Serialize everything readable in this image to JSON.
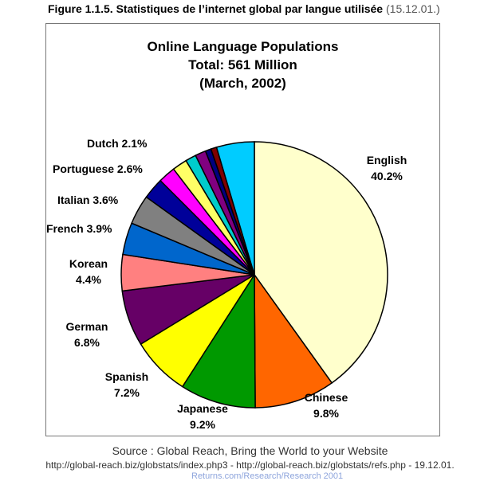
{
  "figure": {
    "caption_main": "Figure 1.1.5. Statistiques de l’internet global par langue utilisée",
    "caption_date": "(15.12.01.)"
  },
  "chart_data": {
    "type": "pie",
    "title": "Online Language Populations",
    "subtitle_1": "Total: 561 Million",
    "subtitle_2": "(March, 2002)",
    "slices": [
      {
        "label": "English",
        "pct_text": "40.2%",
        "value": 40.2,
        "color": "#ffffcc"
      },
      {
        "label": "Chinese",
        "pct_text": "9.8%",
        "value": 9.8,
        "color": "#ff6600"
      },
      {
        "label": "Japanese",
        "pct_text": "9.2%",
        "value": 9.2,
        "color": "#009900"
      },
      {
        "label": "Spanish",
        "pct_text": "7.2%",
        "value": 7.2,
        "color": "#ffff00"
      },
      {
        "label": "German",
        "pct_text": "6.8%",
        "value": 6.8,
        "color": "#660066"
      },
      {
        "label": "Korean",
        "pct_text": "4.4%",
        "value": 4.4,
        "color": "#ff8080"
      },
      {
        "label": "French",
        "pct_text": "3.9%",
        "value": 3.9,
        "color": "#0066cc"
      },
      {
        "label": "Italian",
        "pct_text": "3.6%",
        "value": 3.6,
        "color": "#808080"
      },
      {
        "label": "Portuguese",
        "pct_text": "2.6%",
        "value": 2.6,
        "color": "#000099"
      },
      {
        "label": "Dutch",
        "pct_text": "2.1%",
        "value": 2.1,
        "color": "#ff00ff"
      },
      {
        "label": "",
        "pct_text": "",
        "value": 1.8,
        "color": "#ffff66"
      },
      {
        "label": "",
        "pct_text": "",
        "value": 1.3,
        "color": "#00cccc"
      },
      {
        "label": "",
        "pct_text": "",
        "value": 1.3,
        "color": "#800080"
      },
      {
        "label": "",
        "pct_text": "",
        "value": 0.7,
        "color": "#000080"
      },
      {
        "label": "",
        "pct_text": "",
        "value": 0.7,
        "color": "#800000"
      },
      {
        "label": "",
        "pct_text": "",
        "value": 4.6,
        "color": "#00ccff"
      }
    ]
  },
  "source": {
    "line1": "Source : Global Reach, Bring the World to your Website",
    "line2": "http://global-reach.biz/globstats/index.php3  -  http://global-reach.biz/globstats/refs.php - 19.12.01.",
    "line3": "Returns.com/Research/Research 2001"
  }
}
